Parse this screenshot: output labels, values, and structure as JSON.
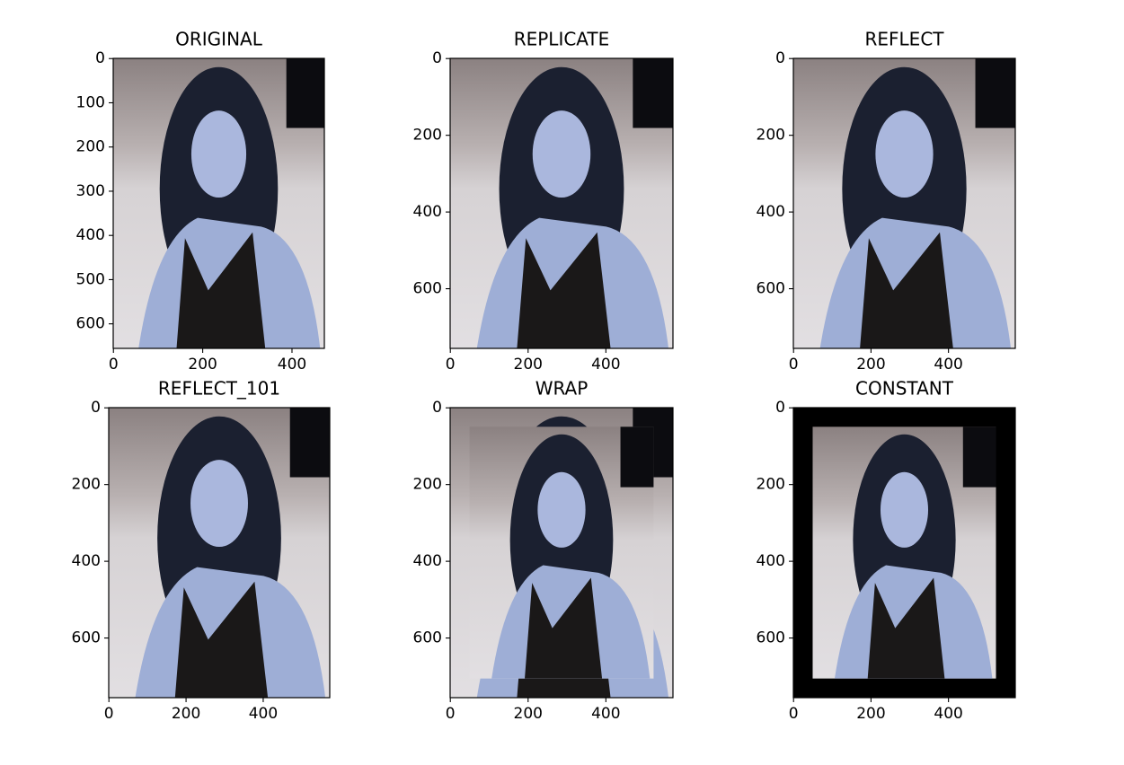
{
  "chart_data": [
    {
      "type": "image",
      "title": "ORIGINAL",
      "xlim": [
        -0.5,
        472.5
      ],
      "ylim": [
        655.5,
        -0.5
      ],
      "xticks": [
        0,
        200,
        400
      ],
      "yticks": [
        0,
        100,
        200,
        300,
        400,
        500,
        600
      ]
    },
    {
      "type": "image",
      "title": "REPLICATE",
      "xlim": [
        -0.5,
        572.5
      ],
      "ylim": [
        755.5,
        -0.5
      ],
      "xticks": [
        0,
        200,
        400
      ],
      "yticks": [
        0,
        200,
        400,
        600
      ]
    },
    {
      "type": "image",
      "title": "REFLECT",
      "xlim": [
        -0.5,
        572.5
      ],
      "ylim": [
        755.5,
        -0.5
      ],
      "xticks": [
        0,
        200,
        400
      ],
      "yticks": [
        0,
        200,
        400,
        600
      ]
    },
    {
      "type": "image",
      "title": "REFLECT_101",
      "xlim": [
        -0.5,
        572.5
      ],
      "ylim": [
        755.5,
        -0.5
      ],
      "xticks": [
        0,
        200,
        400
      ],
      "yticks": [
        0,
        200,
        400,
        600
      ]
    },
    {
      "type": "image",
      "title": "WRAP",
      "xlim": [
        -0.5,
        572.5
      ],
      "ylim": [
        755.5,
        -0.5
      ],
      "xticks": [
        0,
        200,
        400
      ],
      "yticks": [
        0,
        200,
        400,
        600
      ]
    },
    {
      "type": "image",
      "title": "CONSTANT",
      "xlim": [
        -0.5,
        572.5
      ],
      "ylim": [
        755.5,
        -0.5
      ],
      "xticks": [
        0,
        200,
        400
      ],
      "yticks": [
        0,
        200,
        400,
        600
      ]
    }
  ]
}
